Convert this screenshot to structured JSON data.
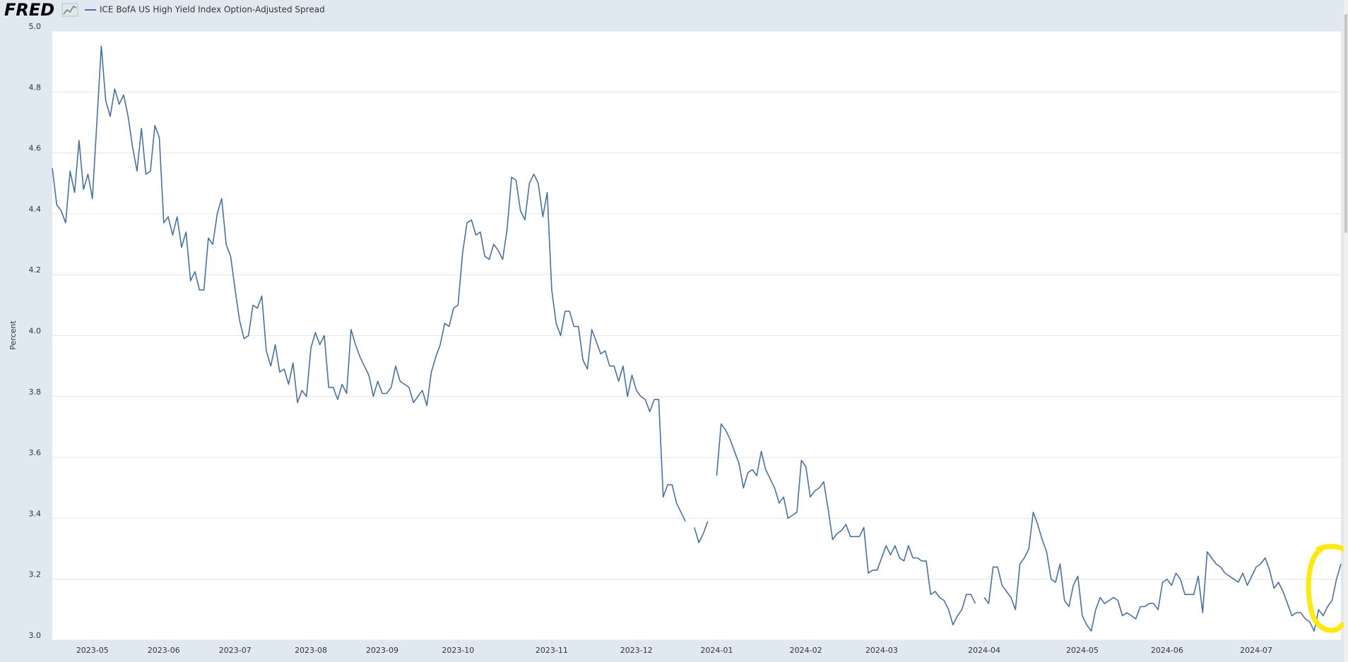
{
  "chart_data": {
    "type": "line",
    "logo": "FRED",
    "y_label": "Percent",
    "categories": [
      null,
      null,
      null,
      null,
      null,
      null,
      null,
      null,
      null,
      "2023-05",
      null,
      null,
      null,
      null,
      null,
      null,
      null,
      null,
      null,
      null,
      null,
      null,
      null,
      null,
      null,
      "2023-06",
      null,
      null,
      null,
      null,
      null,
      null,
      null,
      null,
      null,
      null,
      null,
      null,
      null,
      null,
      null,
      "2023-07",
      null,
      null,
      null,
      null,
      null,
      null,
      null,
      null,
      null,
      null,
      null,
      null,
      null,
      null,
      null,
      null,
      "2023-08",
      null,
      null,
      null,
      null,
      null,
      null,
      null,
      null,
      null,
      null,
      null,
      null,
      null,
      null,
      null,
      "2023-09",
      null,
      null,
      null,
      null,
      null,
      null,
      null,
      null,
      null,
      null,
      null,
      null,
      null,
      null,
      null,
      null,
      "2023-10",
      null,
      null,
      null,
      null,
      null,
      null,
      null,
      null,
      null,
      null,
      null,
      null,
      null,
      null,
      null,
      null,
      null,
      null,
      null,
      null,
      "2023-11",
      null,
      null,
      null,
      null,
      null,
      null,
      null,
      null,
      null,
      null,
      null,
      null,
      null,
      null,
      null,
      null,
      null,
      null,
      "2023-12",
      null,
      null,
      null,
      null,
      null,
      null,
      null,
      null,
      null,
      null,
      null,
      null,
      null,
      null,
      null,
      null,
      null,
      "2024-01",
      null,
      null,
      null,
      null,
      null,
      null,
      null,
      null,
      null,
      null,
      null,
      null,
      null,
      null,
      null,
      null,
      null,
      null,
      null,
      "2024-02",
      null,
      null,
      null,
      null,
      null,
      null,
      null,
      null,
      null,
      null,
      null,
      null,
      null,
      null,
      null,
      null,
      "2024-03",
      null,
      null,
      null,
      null,
      null,
      null,
      null,
      null,
      null,
      null,
      null,
      null,
      null,
      null,
      null,
      null,
      null,
      null,
      null,
      null,
      null,
      null,
      "2024-04",
      null,
      null,
      null,
      null,
      null,
      null,
      null,
      null,
      null,
      null,
      null,
      null,
      null,
      null,
      null,
      null,
      null,
      null,
      null,
      null,
      null,
      "2024-05",
      null,
      null,
      null,
      null,
      null,
      null,
      null,
      null,
      null,
      null,
      null,
      null,
      null,
      null,
      null,
      null,
      null,
      null,
      "2024-06",
      null,
      null,
      null,
      null,
      null,
      null,
      null,
      null,
      null,
      null,
      null,
      null,
      null,
      null,
      null,
      null,
      null,
      null,
      null,
      "2024-07",
      null,
      null,
      null,
      null,
      null,
      null,
      null,
      null,
      null,
      null,
      null,
      null,
      null,
      null,
      null,
      null,
      null,
      null,
      null
    ],
    "series": [
      {
        "name": "ICE BofA US High Yield Index Option-Adjusted Spread",
        "color": "#4572a7",
        "values": [
          4.55,
          4.43,
          4.41,
          4.37,
          4.54,
          4.47,
          4.64,
          4.48,
          4.53,
          4.45,
          4.7,
          4.95,
          4.77,
          4.72,
          4.81,
          4.76,
          4.79,
          4.72,
          4.62,
          4.54,
          4.68,
          4.53,
          4.54,
          4.69,
          4.65,
          4.37,
          4.39,
          4.33,
          4.39,
          4.29,
          4.34,
          4.18,
          4.21,
          4.15,
          4.15,
          4.32,
          4.3,
          4.4,
          4.45,
          4.3,
          4.26,
          4.15,
          4.05,
          3.99,
          4.0,
          4.1,
          4.09,
          4.13,
          3.95,
          3.9,
          3.97,
          3.88,
          3.89,
          3.84,
          3.91,
          3.78,
          3.82,
          3.8,
          3.96,
          4.01,
          3.97,
          4.0,
          3.83,
          3.83,
          3.79,
          3.84,
          3.81,
          4.02,
          3.97,
          3.93,
          3.9,
          3.87,
          3.8,
          3.85,
          3.81,
          3.81,
          3.83,
          3.9,
          3.85,
          3.84,
          3.83,
          3.78,
          3.8,
          3.82,
          3.77,
          3.88,
          3.93,
          3.97,
          4.04,
          4.03,
          4.09,
          4.1,
          4.27,
          4.37,
          4.38,
          4.33,
          4.34,
          4.26,
          4.25,
          4.3,
          4.28,
          4.25,
          4.35,
          4.52,
          4.51,
          4.41,
          4.38,
          4.5,
          4.53,
          4.5,
          4.39,
          4.47,
          4.15,
          4.04,
          4.0,
          4.08,
          4.08,
          4.03,
          4.03,
          3.92,
          3.89,
          4.02,
          3.98,
          3.94,
          3.95,
          3.9,
          3.9,
          3.85,
          3.9,
          3.8,
          3.87,
          3.82,
          3.8,
          3.79,
          3.75,
          3.79,
          3.79,
          3.47,
          3.51,
          3.51,
          3.45,
          3.42,
          3.39,
          null,
          3.37,
          3.32,
          3.35,
          3.39,
          null,
          3.54,
          3.71,
          3.69,
          3.66,
          3.62,
          3.58,
          3.5,
          3.55,
          3.56,
          3.54,
          3.62,
          3.56,
          3.53,
          3.5,
          3.45,
          3.47,
          3.4,
          3.41,
          3.42,
          3.59,
          3.57,
          3.47,
          3.49,
          3.5,
          3.52,
          3.43,
          3.33,
          3.35,
          3.36,
          3.38,
          3.34,
          3.34,
          3.34,
          3.37,
          3.22,
          3.23,
          3.23,
          3.27,
          3.31,
          3.28,
          3.31,
          3.27,
          3.26,
          3.31,
          3.27,
          3.27,
          3.26,
          3.26,
          3.15,
          3.16,
          3.14,
          3.13,
          3.1,
          3.05,
          3.08,
          3.1,
          3.15,
          3.15,
          3.12,
          null,
          3.14,
          3.12,
          3.24,
          3.24,
          3.18,
          3.16,
          3.14,
          3.1,
          3.25,
          3.27,
          3.3,
          3.42,
          3.38,
          3.33,
          3.29,
          3.2,
          3.19,
          3.25,
          3.13,
          3.11,
          3.18,
          3.21,
          3.08,
          3.05,
          3.03,
          3.1,
          3.14,
          3.12,
          3.13,
          3.14,
          3.13,
          3.08,
          3.09,
          3.08,
          3.07,
          3.11,
          3.11,
          3.12,
          3.12,
          3.1,
          3.19,
          3.2,
          3.18,
          3.22,
          3.2,
          3.15,
          3.15,
          3.15,
          3.21,
          3.09,
          3.29,
          3.27,
          3.25,
          3.24,
          3.22,
          3.21,
          3.2,
          3.19,
          3.22,
          3.18,
          3.21,
          3.24,
          3.25,
          3.27,
          3.23,
          3.17,
          3.19,
          3.16,
          3.12,
          3.08,
          3.09,
          3.09,
          3.07,
          3.06,
          3.03,
          3.1,
          3.08,
          3.11,
          3.13,
          3.2,
          3.25
        ]
      }
    ],
    "ylim": [
      3.0,
      5.0
    ],
    "yticks": [
      {
        "value": 3,
        "label": "3.0"
      },
      3.2,
      3.4,
      3.6,
      3.8,
      {
        "value": 4,
        "label": "4.0"
      },
      4.2,
      4.4,
      4.6,
      4.8,
      {
        "value": 5,
        "label": "5.0"
      }
    ],
    "grid": true
  }
}
